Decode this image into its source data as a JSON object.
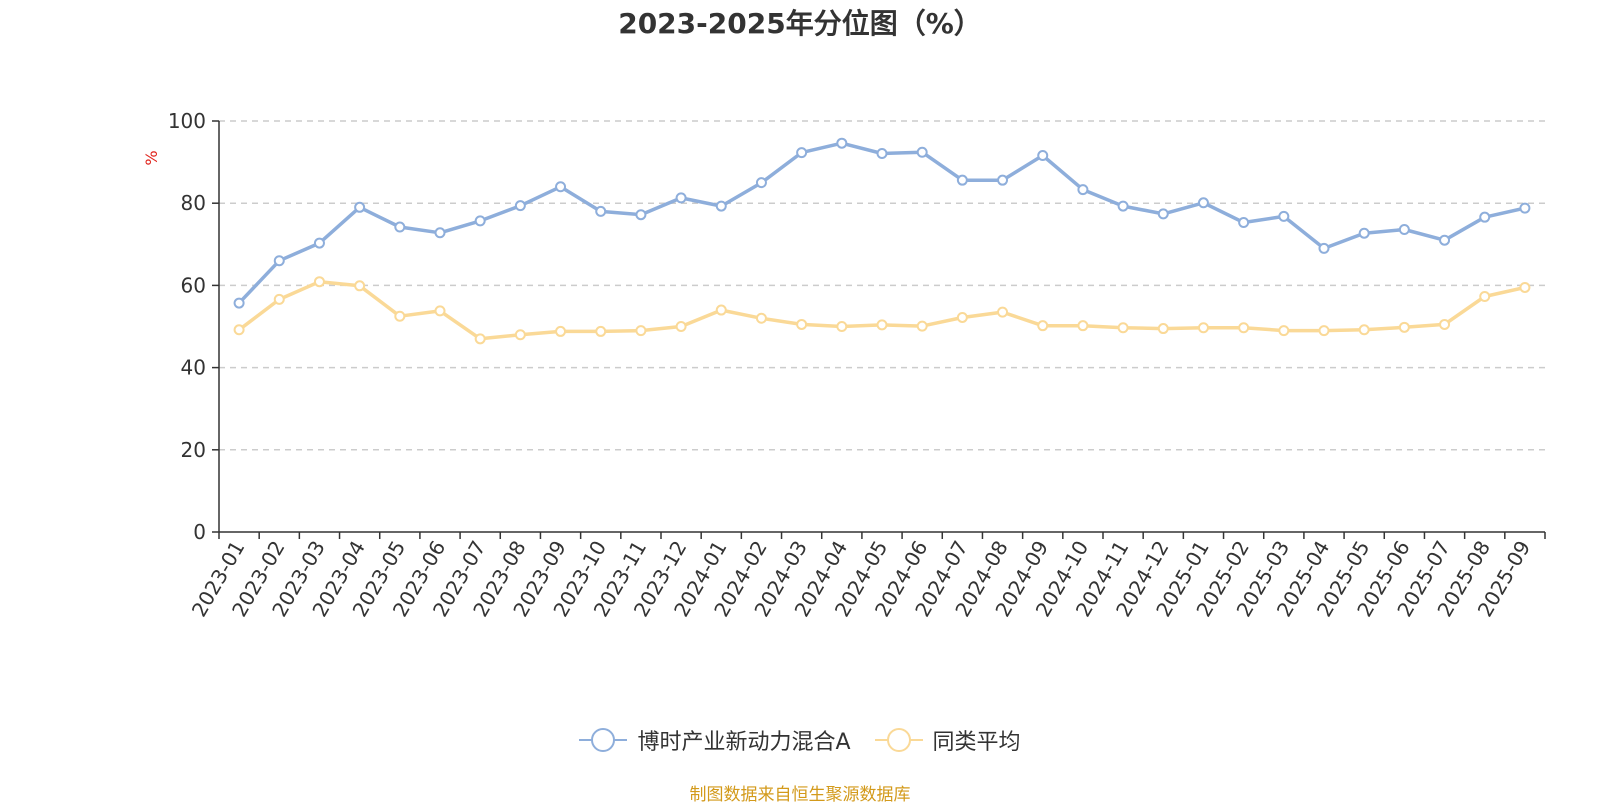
{
  "chart_data": {
    "type": "line",
    "title": "2023-2025年分位图（%）",
    "ylabel": "%",
    "ylim": [
      0,
      100
    ],
    "yticks": [
      0,
      20,
      40,
      60,
      80,
      100
    ],
    "grid": true,
    "legend_position": "bottom",
    "categories": [
      "2023-01",
      "2023-02",
      "2023-03",
      "2023-04",
      "2023-05",
      "2023-06",
      "2023-07",
      "2023-08",
      "2023-09",
      "2023-10",
      "2023-11",
      "2023-12",
      "2024-01",
      "2024-02",
      "2024-03",
      "2024-04",
      "2024-05",
      "2024-06",
      "2024-07",
      "2024-08",
      "2024-09",
      "2024-10",
      "2024-11",
      "2024-12",
      "2025-01",
      "2025-02",
      "2025-03",
      "2025-04",
      "2025-05",
      "2025-06",
      "2025-07",
      "2025-08",
      "2025-09"
    ],
    "series": [
      {
        "name": "博时产业新动力混合A",
        "color": "#8eaedb",
        "values": [
          55.7,
          66.0,
          70.3,
          79.0,
          74.2,
          72.8,
          75.7,
          79.4,
          84.0,
          78.0,
          77.2,
          81.3,
          79.3,
          85.0,
          92.3,
          94.6,
          92.1,
          92.4,
          85.6,
          85.6,
          91.6,
          83.3,
          79.3,
          77.4,
          80.1,
          75.3,
          76.8,
          69.0,
          72.7,
          73.6,
          71.0,
          76.6,
          78.8
        ]
      },
      {
        "name": "同类平均",
        "color": "#fad997",
        "values": [
          49.2,
          56.6,
          60.9,
          59.9,
          52.5,
          53.8,
          47.0,
          48.0,
          48.8,
          48.8,
          49.0,
          50.0,
          54.0,
          52.0,
          50.5,
          50.0,
          50.4,
          50.1,
          52.2,
          53.5,
          50.2,
          50.2,
          49.7,
          49.5,
          49.7,
          49.7,
          49.0,
          49.0,
          49.2,
          49.8,
          50.5,
          57.3,
          59.5
        ]
      }
    ]
  },
  "source_text": "制图数据来自恒生聚源数据库"
}
